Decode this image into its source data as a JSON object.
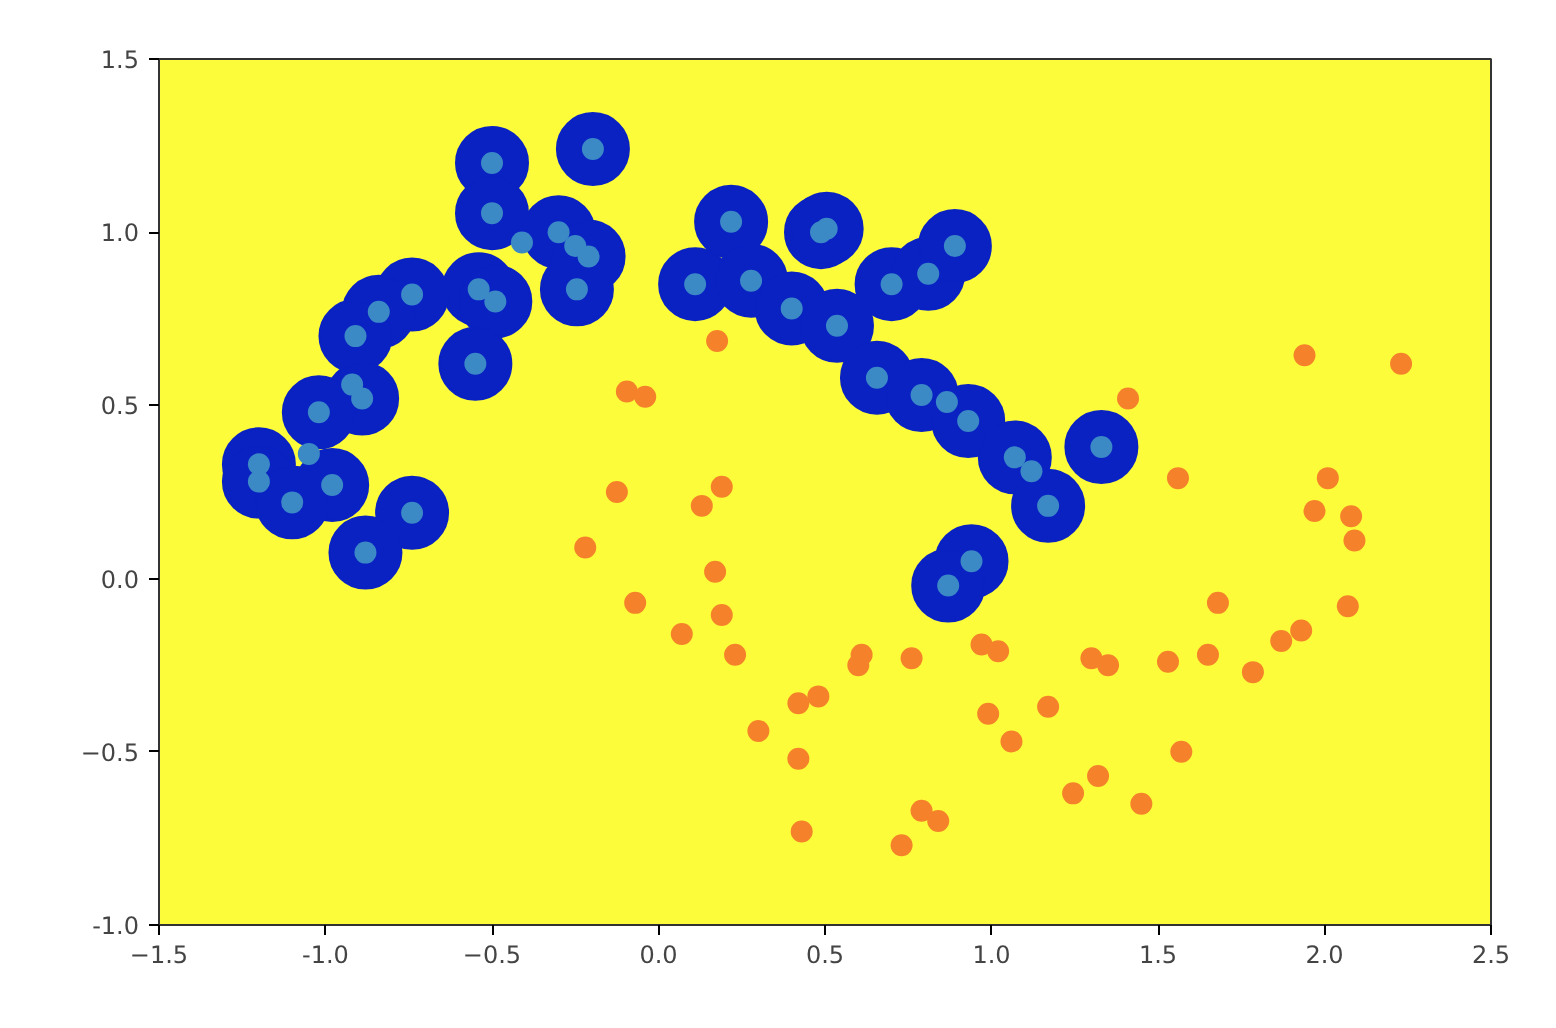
{
  "chart_data": {
    "type": "scatter",
    "xlim": [
      -1.5,
      2.5
    ],
    "ylim": [
      -1.0,
      1.5
    ],
    "xticks": [
      -1.5,
      {
        "value": -1.0,
        "label": "-1.0"
      },
      -0.5,
      {
        "value": 0,
        "label": "0.0"
      },
      0.5,
      {
        "value": 1.0,
        "label": "1.0"
      },
      1.5,
      {
        "value": 2.0,
        "label": "2.0"
      },
      2.5
    ],
    "yticks": [
      {
        "value": -1.0,
        "label": "-1.0"
      },
      -0.5,
      {
        "value": 0,
        "label": "0.0"
      },
      0.5,
      {
        "value": 1.0,
        "label": "1.0"
      },
      1.5
    ],
    "grid": false,
    "marker": "circle",
    "series": [
      {
        "type": "bubble",
        "color": "#0a22c2",
        "x": [
          -0.197,
          -0.5,
          -0.5,
          -0.3,
          -0.21,
          -0.245,
          -0.54,
          -0.49,
          -0.74,
          -0.84,
          -0.91,
          -0.55,
          -0.89,
          -1.02,
          -1.2,
          -1.2,
          -0.98,
          -1.1,
          -0.74,
          -0.88,
          0.218,
          0.488,
          0.505,
          0.11,
          0.278,
          0.4,
          0.536,
          0.7,
          0.81,
          0.89,
          0.656,
          0.79,
          0.93,
          1.07,
          1.33,
          1.17,
          0.94,
          0.87
        ],
        "values": [
          1.24,
          1.2,
          1.055,
          1.0,
          0.93,
          0.835,
          0.835,
          0.8,
          0.82,
          0.77,
          0.7,
          0.62,
          0.52,
          0.48,
          0.33,
          0.28,
          0.27,
          0.22,
          0.19,
          0.075,
          1.03,
          1.0,
          1.01,
          0.85,
          0.86,
          0.78,
          0.73,
          0.85,
          0.88,
          0.96,
          0.58,
          0.53,
          0.455,
          0.35,
          0.38,
          0.21,
          0.05,
          -0.02
        ],
        "sizes": [
          1,
          1,
          1,
          1,
          1,
          1,
          1,
          1,
          1,
          1,
          1,
          1,
          1,
          1,
          1,
          1,
          1,
          1,
          1,
          1,
          1,
          1,
          1,
          1,
          1,
          1,
          1,
          1,
          1,
          1,
          1,
          1,
          1,
          1,
          1,
          1,
          1,
          1
        ]
      },
      {
        "color": "#3b8ac6",
        "x": [
          -0.197,
          -0.5,
          -0.5,
          -0.41,
          -0.3,
          -0.25,
          -0.21,
          -0.245,
          -0.54,
          -0.49,
          -0.74,
          -0.84,
          -0.91,
          -0.55,
          -0.92,
          -0.89,
          -1.02,
          -1.05,
          -1.2,
          -1.2,
          -0.98,
          -1.1,
          -0.74,
          -0.88,
          0.218,
          0.488,
          0.505,
          0.11,
          0.278,
          0.4,
          0.536,
          0.7,
          0.81,
          0.89,
          0.656,
          0.79,
          0.866,
          0.93,
          1.07,
          1.12,
          1.33,
          1.17,
          0.94,
          0.87
        ],
        "values": [
          1.24,
          1.2,
          1.055,
          0.97,
          1.0,
          0.96,
          0.93,
          0.835,
          0.835,
          0.8,
          0.82,
          0.77,
          0.7,
          0.62,
          0.56,
          0.52,
          0.48,
          0.36,
          0.33,
          0.28,
          0.27,
          0.22,
          0.19,
          0.075,
          1.03,
          1.0,
          1.01,
          0.85,
          0.86,
          0.78,
          0.73,
          0.85,
          0.88,
          0.96,
          0.58,
          0.53,
          0.51,
          0.455,
          0.35,
          0.31,
          0.38,
          0.21,
          0.05,
          -0.02
        ]
      },
      {
        "color": "#f5822a",
        "x": [
          0.176,
          -0.095,
          -0.04,
          1.41,
          1.94,
          2.23,
          1.56,
          2.01,
          1.97,
          2.08,
          2.09,
          -0.125,
          0.19,
          0.13,
          -0.22,
          0.17,
          -0.07,
          0.19,
          0.07,
          0.23,
          1.68,
          2.07,
          1.93,
          1.87,
          1.785,
          1.65,
          1.53,
          1.35,
          1.3,
          0.97,
          1.02,
          0.76,
          0.61,
          0.6,
          0.48,
          0.42,
          0.3,
          0.42,
          0.99,
          1.17,
          1.06,
          1.57,
          1.32,
          1.245,
          1.45,
          0.43,
          0.79,
          0.84,
          0.73
        ],
        "values": [
          0.686,
          0.54,
          0.525,
          0.52,
          0.645,
          0.62,
          0.29,
          0.29,
          0.195,
          0.18,
          0.11,
          0.25,
          0.265,
          0.21,
          0.09,
          0.02,
          -0.07,
          -0.105,
          -0.16,
          -0.22,
          -0.07,
          -0.08,
          -0.15,
          -0.18,
          -0.27,
          -0.22,
          -0.24,
          -0.25,
          -0.23,
          -0.19,
          -0.21,
          -0.23,
          -0.22,
          -0.25,
          -0.34,
          -0.36,
          -0.44,
          -0.52,
          -0.39,
          -0.37,
          -0.47,
          -0.5,
          -0.57,
          -0.62,
          -0.65,
          -0.73,
          -0.67,
          -0.7,
          -0.77
        ]
      }
    ]
  }
}
